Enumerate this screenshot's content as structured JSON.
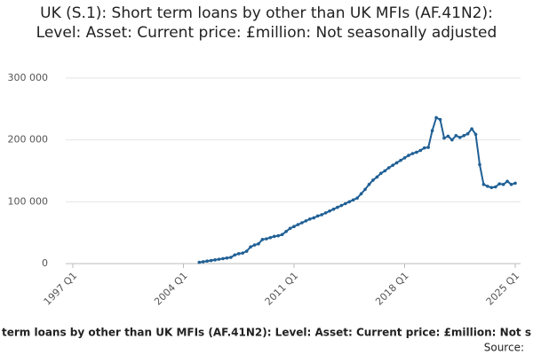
{
  "chart_data": {
    "type": "line",
    "title": "UK (S.1): Short term loans by other than UK MFIs (AF.41N2): Level: Asset: Current price: £million: Not seasonally adjusted",
    "footer": "term loans by other than UK MFIs (AF.41N2): Level: Asset: Current price: £million: Not s",
    "source": "Source:",
    "categories": [
      "1997 Q1",
      null,
      null,
      null,
      null,
      null,
      null,
      null,
      null,
      null,
      null,
      null,
      null,
      null,
      null,
      null,
      null,
      null,
      null,
      null,
      null,
      null,
      null,
      null,
      null,
      null,
      null,
      null,
      "2004 Q1",
      null,
      null,
      null,
      null,
      null,
      null,
      null,
      null,
      null,
      null,
      null,
      null,
      null,
      null,
      null,
      null,
      null,
      null,
      null,
      null,
      null,
      null,
      null,
      null,
      null,
      null,
      null,
      "2011 Q1",
      null,
      null,
      null,
      null,
      null,
      null,
      null,
      null,
      null,
      null,
      null,
      null,
      null,
      null,
      null,
      null,
      null,
      null,
      null,
      null,
      null,
      null,
      null,
      null,
      null,
      null,
      null,
      "2018 Q1",
      null,
      null,
      null,
      null,
      null,
      null,
      null,
      null,
      null,
      null,
      null,
      null,
      null,
      null,
      null,
      null,
      null,
      null,
      null,
      null,
      null,
      null,
      null,
      null,
      null,
      null,
      null,
      "2025 Q1"
    ],
    "values": [
      null,
      null,
      null,
      null,
      null,
      null,
      null,
      null,
      null,
      null,
      null,
      null,
      null,
      null,
      null,
      null,
      null,
      null,
      null,
      null,
      null,
      null,
      null,
      null,
      null,
      null,
      null,
      null,
      null,
      null,
      null,
      null,
      2000,
      3000,
      4000,
      5000,
      6000,
      7000,
      8000,
      9000,
      10000,
      14000,
      16000,
      17000,
      20000,
      27000,
      30000,
      32000,
      39000,
      40000,
      42000,
      44000,
      45000,
      47000,
      52000,
      57000,
      60000,
      63000,
      66000,
      69000,
      72000,
      74000,
      77000,
      79000,
      82000,
      85000,
      88000,
      91000,
      94000,
      97000,
      100000,
      103000,
      106000,
      113000,
      120000,
      128000,
      135000,
      140000,
      146000,
      150000,
      155000,
      159000,
      163000,
      167000,
      171000,
      175000,
      178000,
      180000,
      183000,
      187000,
      188000,
      215000,
      236000,
      233000,
      203000,
      206000,
      200000,
      207000,
      204000,
      207000,
      210000,
      218000,
      209000,
      160000,
      128000,
      125000,
      123000,
      124000,
      129000,
      128000,
      133000,
      128000,
      130000
    ],
    "color": "#206095",
    "ylim": [
      0,
      300000
    ],
    "yticks": [
      0,
      {
        "value": 100000,
        "label": "100 000"
      },
      {
        "value": 200000,
        "label": "200 000"
      },
      {
        "value": 300000,
        "label": "300 000"
      }
    ],
    "grid": true
  }
}
